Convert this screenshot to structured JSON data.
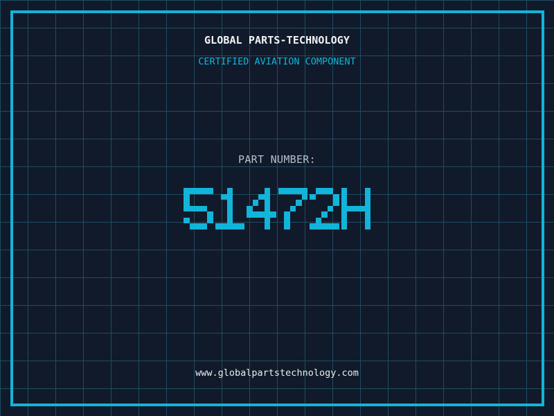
{
  "header": {
    "title": "GLOBAL PARTS-TECHNOLOGY",
    "subtitle": "CERTIFIED AVIATION COMPONENT"
  },
  "part": {
    "label": "PART NUMBER:",
    "number": "51472H"
  },
  "footer": {
    "website": "www.globalpartstechnology.com"
  },
  "colors": {
    "background": "#111a2a",
    "grid_line": "#1d4d61",
    "accent": "#12b4d9",
    "title_text": "#f2f4f5",
    "label_text": "#b6c0c9",
    "url_text": "#e9edef"
  }
}
